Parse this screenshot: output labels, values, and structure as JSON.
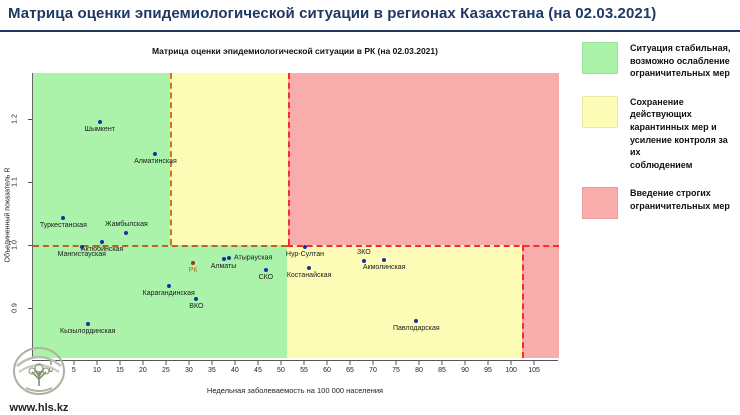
{
  "header": {
    "title": "Матрица оценки эпидемиологической ситуации в регионах Казахстана (на 02.03.2021)"
  },
  "chart_data": {
    "type": "scatter",
    "title": "Матрица оценки эпидемиологической ситуации в РК (на 02.03.2021)",
    "xlabel": "Недельная заболеваемость на 100 000 населения",
    "ylabel": "Объединенный показатель R",
    "x_ticks": [
      0,
      5,
      10,
      15,
      20,
      25,
      30,
      35,
      40,
      45,
      50,
      55,
      60,
      65,
      70,
      75,
      80,
      85,
      90,
      95,
      100,
      105
    ],
    "r_ticks": [
      0.9,
      1.0,
      1.1,
      1.2
    ],
    "x_range": [
      -4.1,
      110.2
    ],
    "r_range": [
      0.821,
      1.273
    ],
    "zone_colors": {
      "green": "#abf3ab",
      "yellow": "#fcfcb6",
      "red": "#f8acac"
    },
    "zones": [
      {
        "x0": -4.1,
        "x1": 25.7,
        "r0": 1.0,
        "r1": 1.273,
        "color": "#abf3ab"
      },
      {
        "x0": 25.7,
        "x1": 51.4,
        "r0": 1.0,
        "r1": 1.273,
        "color": "#fcfcb6"
      },
      {
        "x0": 51.4,
        "x1": 110.2,
        "r0": 1.0,
        "r1": 1.273,
        "color": "#f8acac"
      },
      {
        "x0": -4.1,
        "x1": 51.0,
        "r0": 0.821,
        "r1": 1.0,
        "color": "#abf3ab"
      },
      {
        "x0": 51.0,
        "x1": 102.2,
        "r0": 0.821,
        "r1": 1.0,
        "color": "#fcfcb6"
      },
      {
        "x0": 102.2,
        "x1": 110.2,
        "r0": 0.821,
        "r1": 1.0,
        "color": "#f8acac"
      }
    ],
    "threshold_lines": [
      {
        "orient": "v",
        "x": 25.7,
        "r_from": 1.0,
        "r_to": 1.273,
        "color": "#c8781e"
      },
      {
        "orient": "v",
        "x": 51.4,
        "r_from": 1.0,
        "r_to": 1.273,
        "color": "#fb2b2b"
      },
      {
        "orient": "v",
        "x": 102.2,
        "r_from": 0.821,
        "r_to": 1.0,
        "color": "#fb2b2b"
      },
      {
        "orient": "h",
        "r": 1.0,
        "x_from": -4.1,
        "x_to": 51.0,
        "color": "#b5651d"
      },
      {
        "orient": "h",
        "r": 1.0,
        "x_from": 51.0,
        "x_to": 110.2,
        "color": "#fb2b2b"
      }
    ],
    "point_color": "#1b2f9e",
    "label_color": "#1a1a1a",
    "rk_point_color": "#a03c00",
    "rk_label_color": "#d2571e",
    "points": [
      {
        "name": "Шымкент",
        "x": 10.4,
        "r": 1.195,
        "label_pos": "below"
      },
      {
        "name": "Алматинская",
        "x": 22.5,
        "r": 1.145,
        "label_pos": "below"
      },
      {
        "name": "Туркестанская",
        "x": 2.5,
        "r": 1.043,
        "label_pos": "below"
      },
      {
        "name": "Жамбылская",
        "x": 16.2,
        "r": 1.02,
        "label_pos": "above"
      },
      {
        "name": "Актюбинская",
        "x": 10.9,
        "r": 1.005,
        "label_pos": "below"
      },
      {
        "name": "Мангистауская",
        "x": 6.5,
        "r": 0.997,
        "label_pos": "below"
      },
      {
        "name": "РК",
        "x": 30.7,
        "r": 0.971,
        "label_pos": "below",
        "special": true
      },
      {
        "name": "Алматы",
        "x": 37.3,
        "r": 0.978,
        "label_pos": "below"
      },
      {
        "name": "Атырауская",
        "x": 38.5,
        "r": 0.979,
        "label_pos": "right"
      },
      {
        "name": "СКО",
        "x": 46.5,
        "r": 0.96,
        "label_pos": "below"
      },
      {
        "name": "Карагандинская",
        "x": 25.4,
        "r": 0.935,
        "label_pos": "below"
      },
      {
        "name": "ВКО",
        "x": 31.4,
        "r": 0.915,
        "label_pos": "below"
      },
      {
        "name": "Кызылординская",
        "x": 7.8,
        "r": 0.875,
        "label_pos": "below"
      },
      {
        "name": "Нур-Султан",
        "x": 55.0,
        "r": 0.997,
        "label_pos": "below"
      },
      {
        "name": "Костанайская",
        "x": 55.9,
        "r": 0.963,
        "label_pos": "below"
      },
      {
        "name": "ЗКО",
        "x": 67.8,
        "r": 0.975,
        "label_pos": "above"
      },
      {
        "name": "Акмолинская",
        "x": 72.2,
        "r": 0.976,
        "label_pos": "below"
      },
      {
        "name": "Павлодарская",
        "x": 79.2,
        "r": 0.88,
        "label_pos": "below"
      }
    ]
  },
  "legend": {
    "items": [
      {
        "color": "#abf3ab",
        "text": "Ситуация стабильная,\nвозможно ослабление\nограничительных мер"
      },
      {
        "color": "#fcfcb6",
        "text": "Сохранение действующих\nкарантинных мер и\nусиление контроля за их\nсоблюдением"
      },
      {
        "color": "#f8acac",
        "text": "Введение строгих\nограничительных мер"
      }
    ]
  },
  "logo": {
    "text": "www.hls.kz"
  }
}
